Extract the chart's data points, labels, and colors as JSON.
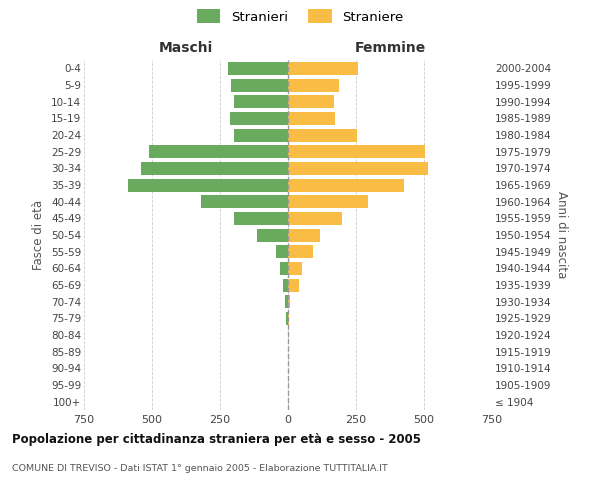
{
  "age_groups": [
    "100+",
    "95-99",
    "90-94",
    "85-89",
    "80-84",
    "75-79",
    "70-74",
    "65-69",
    "60-64",
    "55-59",
    "50-54",
    "45-49",
    "40-44",
    "35-39",
    "30-34",
    "25-29",
    "20-24",
    "15-19",
    "10-14",
    "5-9",
    "0-4"
  ],
  "birth_years": [
    "≤ 1904",
    "1905-1909",
    "1910-1914",
    "1915-1919",
    "1920-1924",
    "1925-1929",
    "1930-1934",
    "1935-1939",
    "1940-1944",
    "1945-1949",
    "1950-1954",
    "1955-1959",
    "1960-1964",
    "1965-1969",
    "1970-1974",
    "1975-1979",
    "1980-1984",
    "1985-1989",
    "1990-1994",
    "1995-1999",
    "2000-2004"
  ],
  "males": [
    0,
    0,
    0,
    0,
    0,
    8,
    10,
    18,
    28,
    45,
    115,
    200,
    320,
    590,
    540,
    510,
    200,
    215,
    200,
    210,
    220
  ],
  "females": [
    0,
    0,
    0,
    0,
    0,
    5,
    8,
    42,
    52,
    92,
    118,
    198,
    295,
    425,
    515,
    505,
    255,
    172,
    168,
    188,
    258
  ],
  "male_color": "#6aaa5e",
  "female_color": "#f9bc45",
  "center_line_color": "#999999",
  "grid_color": "#cccccc",
  "bg_color": "#ffffff",
  "title": "Popolazione per cittadinanza straniera per età e sesso - 2005",
  "subtitle": "COMUNE DI TREVISO - Dati ISTAT 1° gennaio 2005 - Elaborazione TUTTITALIA.IT",
  "ylabel_left": "Fasce di età",
  "ylabel_right": "Anni di nascita",
  "xlabel_left": "Maschi",
  "xlabel_right": "Femmine",
  "legend_male": "Stranieri",
  "legend_female": "Straniere",
  "xlim": 750,
  "figsize": [
    6.0,
    5.0
  ],
  "dpi": 100
}
